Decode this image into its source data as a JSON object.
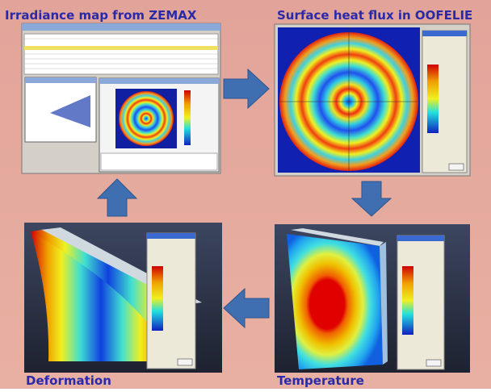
{
  "labels": {
    "top_left": "Irradiance map from ZEMAX",
    "top_right": "Surface heat flux in OOFELIE",
    "bottom_left": "Deformation",
    "bottom_right": "Temperature"
  }
}
